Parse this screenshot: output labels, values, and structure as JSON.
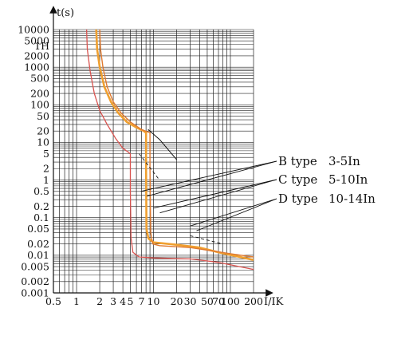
{
  "chart_data": {
    "type": "line",
    "xlabel": "I/IK",
    "ylabel": "t(s)",
    "x_scale": "log",
    "y_scale": "log",
    "xlim": [
      0.5,
      200
    ],
    "ylim": [
      0.001,
      10000
    ],
    "grid": true,
    "x_ticks": [
      {
        "value": 0.5,
        "label": "0.5"
      },
      {
        "value": 1,
        "label": "1"
      },
      {
        "value": 2,
        "label": "2"
      },
      {
        "value": 3,
        "label": "3"
      },
      {
        "value": 4,
        "label": "4"
      },
      {
        "value": 5,
        "label": "5"
      },
      {
        "value": 7,
        "label": "7"
      },
      {
        "value": 10,
        "label": "10"
      },
      {
        "value": 20,
        "label": "20"
      },
      {
        "value": 30,
        "label": "30"
      },
      {
        "value": 50,
        "label": "50"
      },
      {
        "value": 70,
        "label": "70"
      },
      {
        "value": 100,
        "label": "100"
      },
      {
        "value": 200,
        "label": "200"
      }
    ],
    "y_ticks": [
      {
        "value": 10000,
        "label": "10000"
      },
      {
        "value": 5000,
        "label": "5000"
      },
      {
        "value": 3600,
        "label": "1H"
      },
      {
        "value": 2000,
        "label": "2000"
      },
      {
        "value": 1000,
        "label": "1000"
      },
      {
        "value": 500,
        "label": "500"
      },
      {
        "value": 200,
        "label": "200"
      },
      {
        "value": 100,
        "label": "100"
      },
      {
        "value": 50,
        "label": "50"
      },
      {
        "value": 20,
        "label": "20"
      },
      {
        "value": 10,
        "label": "10"
      },
      {
        "value": 5,
        "label": "5"
      },
      {
        "value": 2,
        "label": "2"
      },
      {
        "value": 1,
        "label": "1"
      },
      {
        "value": 0.5,
        "label": "0.5"
      },
      {
        "value": 0.2,
        "label": "0.2"
      },
      {
        "value": 0.1,
        "label": "0.1"
      },
      {
        "value": 0.05,
        "label": "0.05"
      },
      {
        "value": 0.02,
        "label": "0.02"
      },
      {
        "value": 0.01,
        "label": "0.01"
      },
      {
        "value": 0.005,
        "label": "0.005"
      },
      {
        "value": 0.002,
        "label": "0.002"
      },
      {
        "value": 0.001,
        "label": "0.001"
      }
    ],
    "curves": [
      {
        "color": "#d9534f",
        "width": 1.3,
        "points": [
          [
            1.35,
            10000
          ],
          [
            1.38,
            3000
          ],
          [
            1.5,
            800
          ],
          [
            1.7,
            200
          ],
          [
            2.0,
            70
          ],
          [
            2.5,
            30
          ],
          [
            3.2,
            13
          ],
          [
            4.0,
            7
          ],
          [
            5.0,
            5
          ],
          [
            5.0,
            0.5
          ],
          [
            5.1,
            0.03
          ],
          [
            5.4,
            0.012
          ],
          [
            6.5,
            0.009
          ],
          [
            10,
            0.0085
          ],
          [
            30,
            0.008
          ],
          [
            70,
            0.0065
          ],
          [
            200,
            0.0042
          ]
        ]
      },
      {
        "color": "#f0a030",
        "width": 2.6,
        "points": [
          [
            1.8,
            10000
          ],
          [
            1.85,
            3000
          ],
          [
            2.0,
            1000
          ],
          [
            2.3,
            300
          ],
          [
            2.8,
            120
          ],
          [
            3.5,
            60
          ],
          [
            4.5,
            35
          ],
          [
            6.0,
            25
          ],
          [
            7.5,
            20
          ],
          [
            8.0,
            18
          ],
          [
            8.0,
            2
          ],
          [
            8.1,
            0.05
          ],
          [
            8.6,
            0.028
          ],
          [
            10,
            0.022
          ],
          [
            20,
            0.019
          ],
          [
            40,
            0.016
          ],
          [
            70,
            0.012
          ],
          [
            200,
            0.0075
          ]
        ]
      },
      {
        "color": "#e07a30",
        "width": 1.4,
        "points": [
          [
            2.0,
            10000
          ],
          [
            2.05,
            3000
          ],
          [
            2.2,
            1000
          ],
          [
            2.5,
            300
          ],
          [
            3.0,
            120
          ],
          [
            3.8,
            60
          ],
          [
            5.0,
            35
          ],
          [
            7.0,
            22
          ],
          [
            9.0,
            18
          ],
          [
            9.0,
            2
          ],
          [
            9.2,
            0.04
          ],
          [
            9.8,
            0.02
          ],
          [
            12,
            0.018
          ],
          [
            30,
            0.016
          ],
          [
            60,
            0.013
          ],
          [
            100,
            0.011
          ],
          [
            200,
            0.009
          ]
        ]
      },
      {
        "color": "#111111",
        "width": 1.0,
        "points": [
          [
            8.5,
            22
          ],
          [
            12,
            12
          ],
          [
            20,
            3.5
          ]
        ]
      },
      {
        "color": "#111111",
        "width": 0.9,
        "dashed": true,
        "points": [
          [
            6.5,
            5
          ],
          [
            12,
            1
          ]
        ]
      },
      {
        "color": "#111111",
        "width": 0.9,
        "dashed": true,
        "points": [
          [
            30,
            0.033
          ],
          [
            80,
            0.02
          ]
        ]
      }
    ],
    "annotations": [
      {
        "text": "B type",
        "range": "3-5In",
        "arrow_x": 6.8,
        "arrow_y": 0.5
      },
      {
        "text": "C type",
        "range": "5-10In",
        "arrow_x": 10,
        "arrow_y": 0.18
      },
      {
        "text": "D type",
        "range": "10-14In",
        "arrow_x": 30,
        "arrow_y": 0.06
      }
    ]
  }
}
